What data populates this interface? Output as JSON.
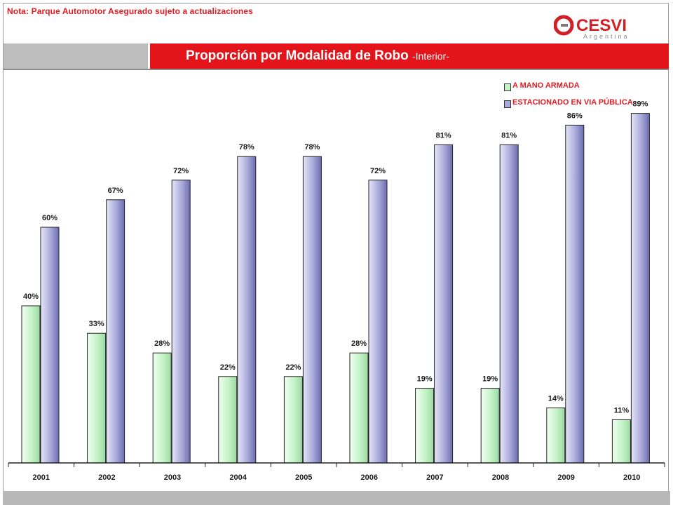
{
  "header": {
    "note": "Nota: Parque Automotor Asegurado sujeto a actualizaciones",
    "logo_text": "CESVI",
    "logo_subtext": "Argentina",
    "title": "Proporción por Modalidad de Robo",
    "subtitle": "-Interior-"
  },
  "colors": {
    "red": "#e31b23",
    "series1": "#c7f5c9",
    "series2": "#a6a6d8"
  },
  "chart_data": {
    "type": "bar",
    "categories": [
      "2001",
      "2002",
      "2003",
      "2004",
      "2005",
      "2006",
      "2007",
      "2008",
      "2009",
      "2010"
    ],
    "series": [
      {
        "name": "A MANO ARMADA",
        "values": [
          40,
          33,
          28,
          22,
          22,
          28,
          19,
          19,
          14,
          11
        ],
        "labels": [
          "40%",
          "33%",
          "28%",
          "22%",
          "22%",
          "28%",
          "19%",
          "19%",
          "14%",
          "11%"
        ]
      },
      {
        "name": "ESTACIONADO EN VIA PÚBLICA",
        "values": [
          60,
          67,
          72,
          78,
          78,
          72,
          81,
          81,
          86,
          89
        ],
        "labels": [
          "60%",
          "67%",
          "72%",
          "78%",
          "78%",
          "72%",
          "81%",
          "81%",
          "86%",
          "89%"
        ]
      }
    ],
    "ylim": [
      0,
      100
    ],
    "grid": false,
    "legend_position": "top-right"
  }
}
